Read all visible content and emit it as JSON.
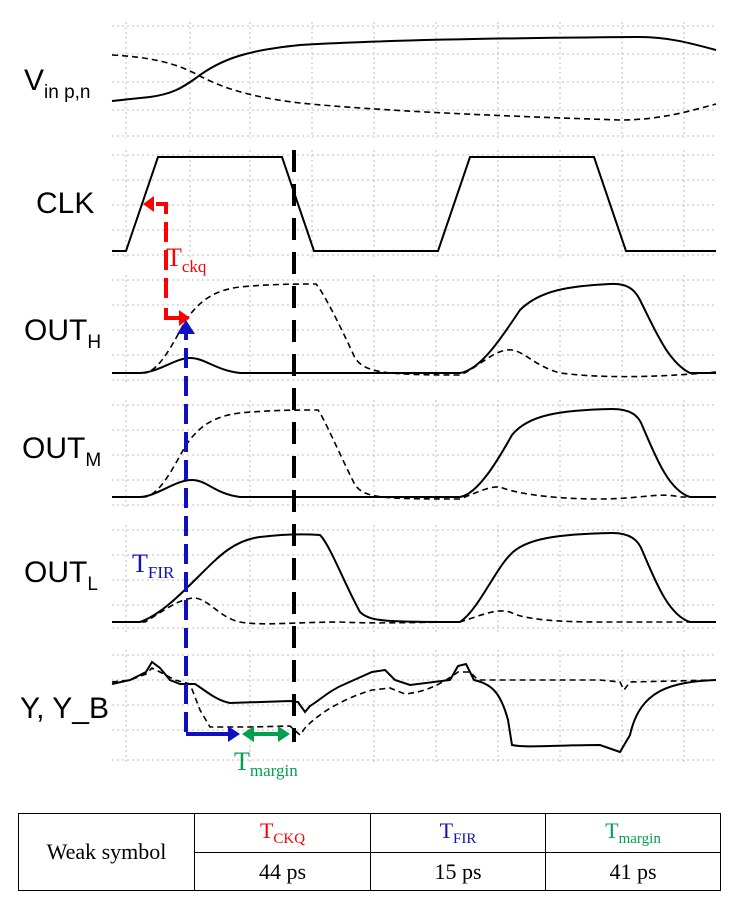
{
  "signals": [
    {
      "name": "V",
      "sub": "in p,n"
    },
    {
      "name": "CLK",
      "sub": ""
    },
    {
      "name": "OUT",
      "sub": "H"
    },
    {
      "name": "OUT",
      "sub": "M"
    },
    {
      "name": "OUT",
      "sub": "L"
    },
    {
      "name": "Y, Y_B",
      "sub": ""
    }
  ],
  "annotations": {
    "tckq": {
      "main": "T",
      "sub": "ckq",
      "color": "#ff0000"
    },
    "tfir": {
      "main": "T",
      "sub": "FIR",
      "color": "#1010c0"
    },
    "tmargin": {
      "main": "T",
      "sub": "margin",
      "color": "#00a050"
    }
  },
  "table": {
    "row_label": "Weak symbol",
    "columns": [
      {
        "main": "T",
        "sub": "CKQ",
        "value": "44 ps",
        "color": "#ff0000"
      },
      {
        "main": "T",
        "sub": "FIR",
        "value": "15 ps",
        "color": "#1010c0"
      },
      {
        "main": "T",
        "sub": "margin",
        "value": "41 ps",
        "color": "#00a050"
      }
    ]
  }
}
